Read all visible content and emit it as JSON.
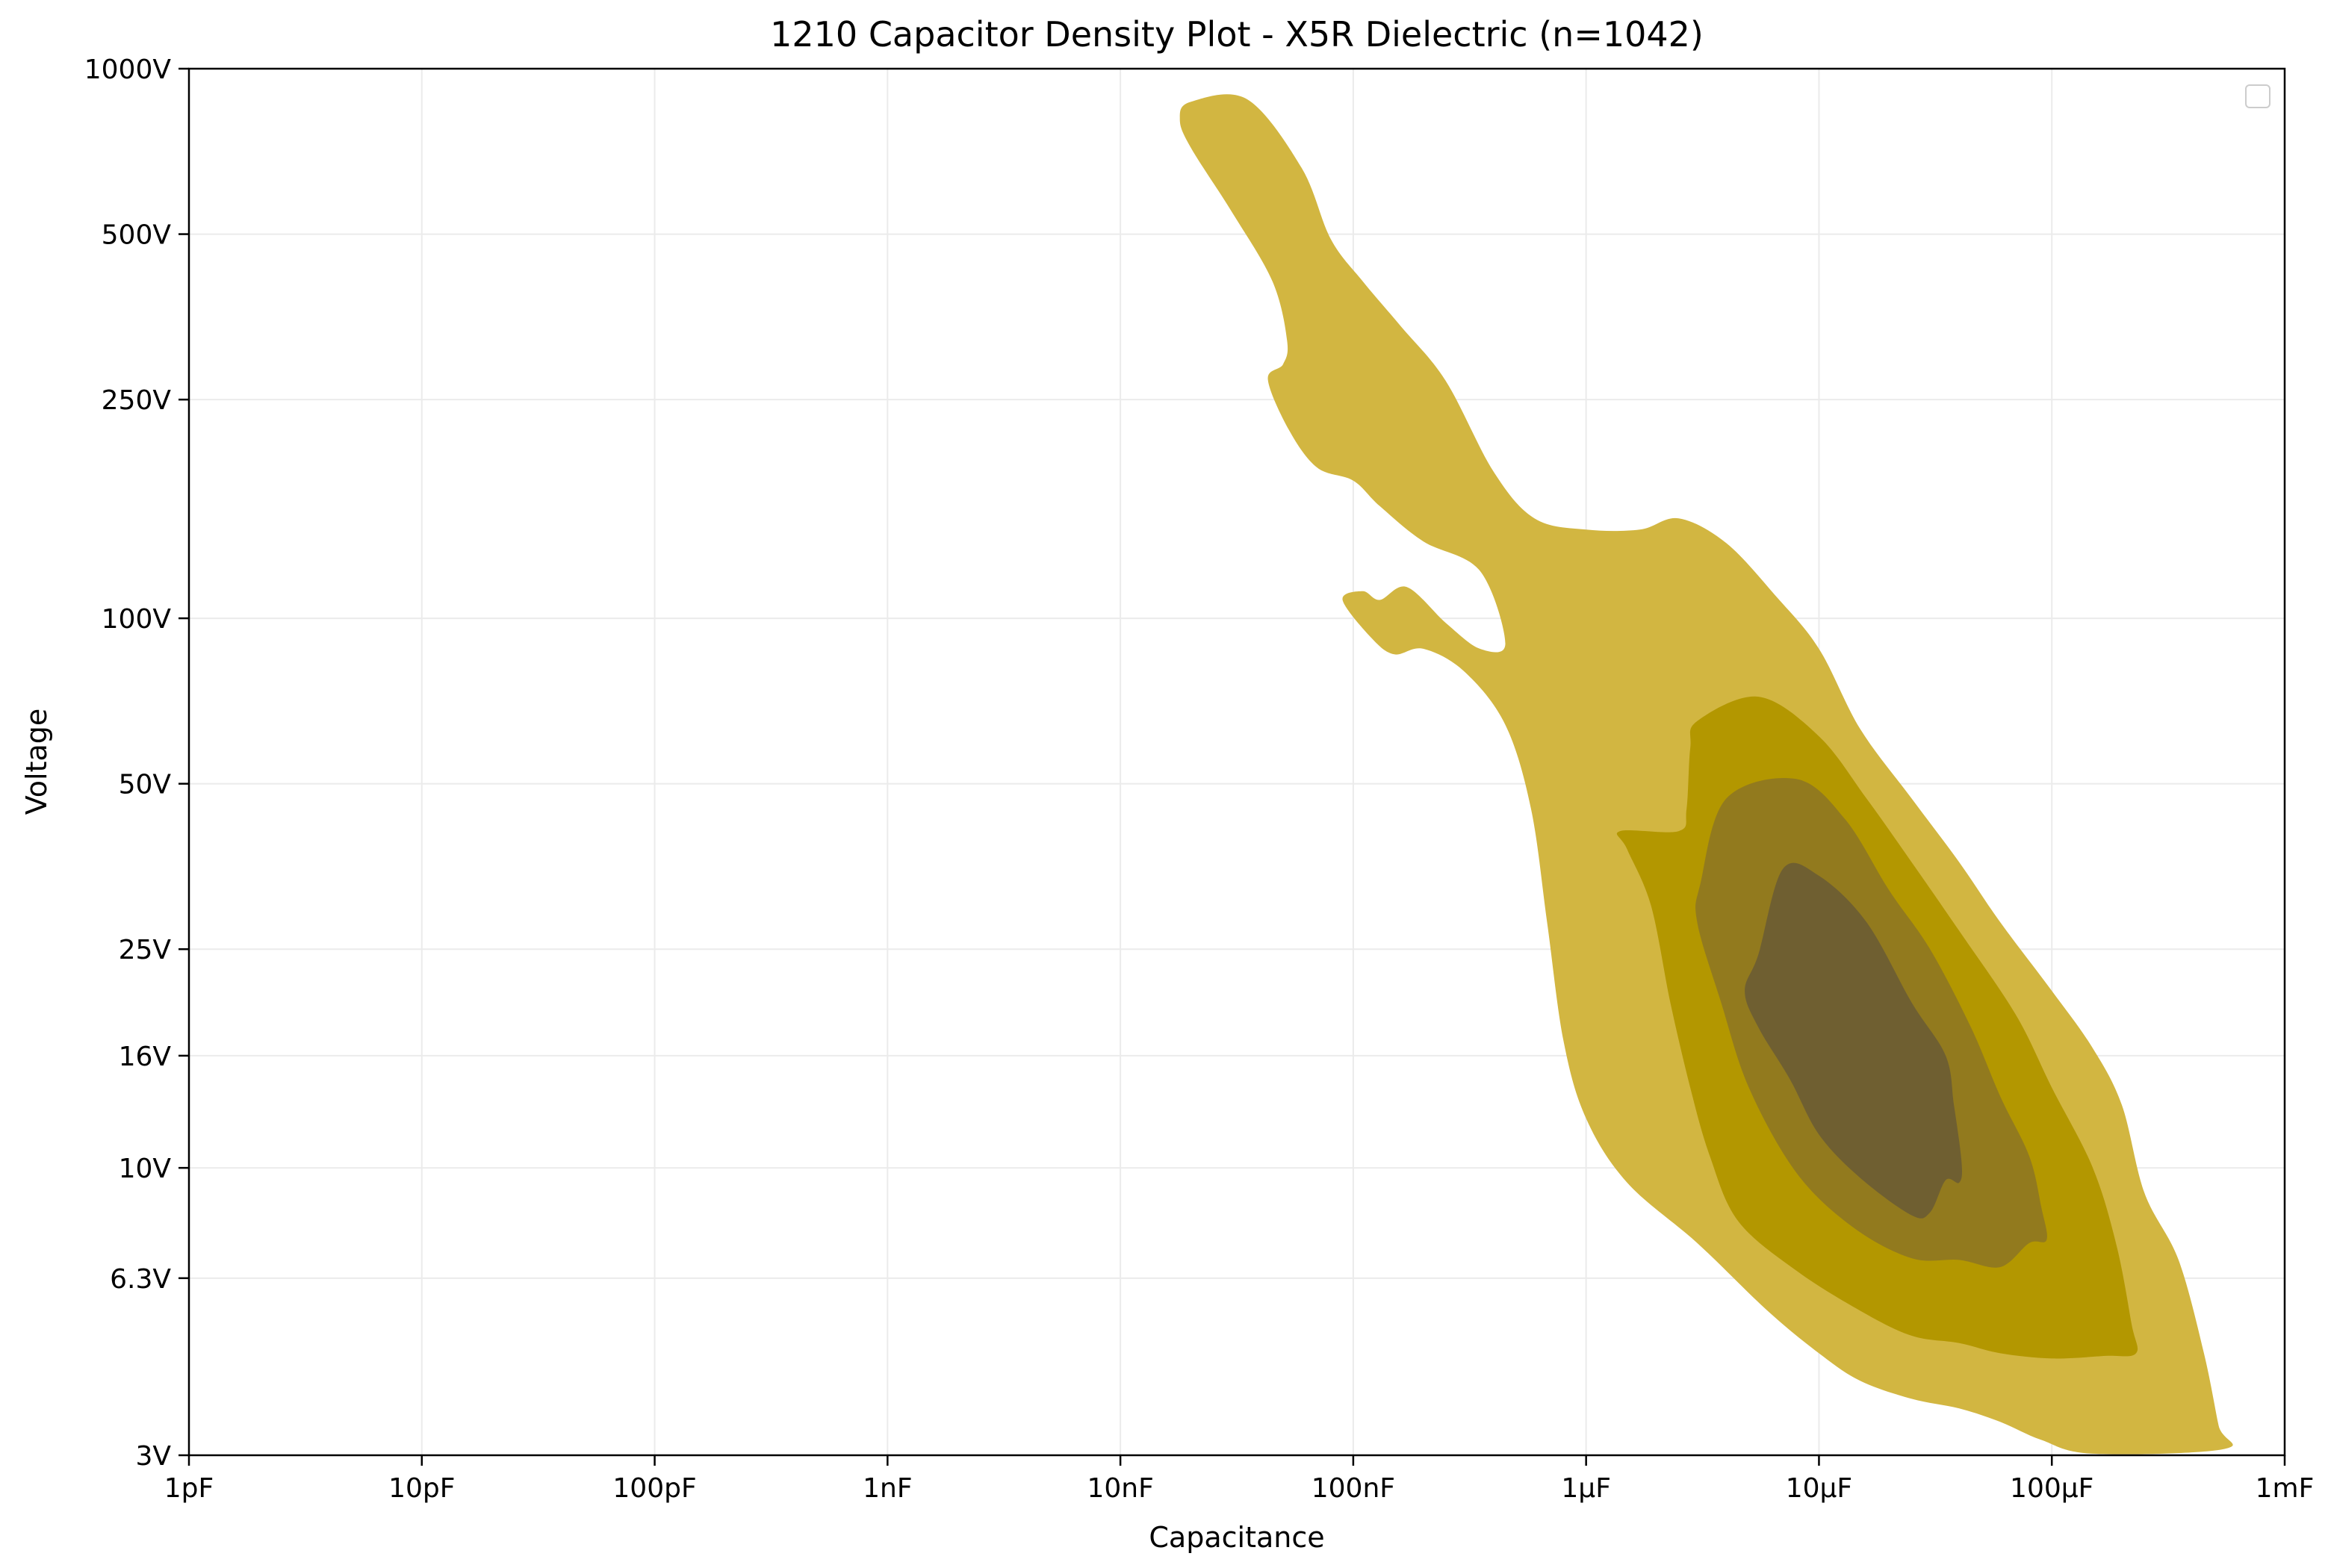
{
  "chart_data": {
    "type": "contour",
    "title": "1210 Capacitor Density Plot - X5R Dielectric (n=1042)",
    "xlabel": "Capacitance",
    "ylabel": "Voltage",
    "x_scale": "log",
    "y_scale": "log",
    "x_range_farads": [
      1e-12,
      0.001
    ],
    "y_range_volts": [
      3,
      1000
    ],
    "x_ticks": [
      {
        "value": 1e-12,
        "label": "1pF"
      },
      {
        "value": 1e-11,
        "label": "10pF"
      },
      {
        "value": 1e-10,
        "label": "100pF"
      },
      {
        "value": 1e-09,
        "label": "1nF"
      },
      {
        "value": 1e-08,
        "label": "10nF"
      },
      {
        "value": 1e-07,
        "label": "100nF"
      },
      {
        "value": 1e-06,
        "label": "1μF"
      },
      {
        "value": 1e-05,
        "label": "10μF"
      },
      {
        "value": 0.0001,
        "label": "100μF"
      },
      {
        "value": 0.001,
        "label": "1mF"
      }
    ],
    "y_ticks": [
      {
        "value": 3,
        "label": "3V"
      },
      {
        "value": 6.3,
        "label": "6.3V"
      },
      {
        "value": 10,
        "label": "10V"
      },
      {
        "value": 16,
        "label": "16V"
      },
      {
        "value": 25,
        "label": "25V"
      },
      {
        "value": 50,
        "label": "50V"
      },
      {
        "value": 100,
        "label": "100V"
      },
      {
        "value": 250,
        "label": "250V"
      },
      {
        "value": 500,
        "label": "500V"
      },
      {
        "value": 1000,
        "label": "1000V"
      }
    ],
    "grid": true,
    "legend": {
      "position": "top-right",
      "entries": []
    },
    "levels": [
      {
        "color": "#d2b641",
        "regions": [
          {
            "name": "density-level-1-main-region",
            "points": [
              [
                2e-08,
                870
              ],
              [
                3.5e-08,
                880
              ],
              [
                6e-08,
                660
              ],
              [
                8e-08,
                490
              ],
              [
                1.1e-07,
                410
              ],
              [
                1.6e-07,
                340
              ],
              [
                2.5e-07,
                270
              ],
              [
                4e-07,
                185
              ],
              [
                6e-07,
                152
              ],
              [
                1e-06,
                145
              ],
              [
                1.7e-06,
                145
              ],
              [
                2.5e-06,
                152
              ],
              [
                4e-06,
                137
              ],
              [
                6.5e-06,
                110
              ],
              [
                1e-05,
                88
              ],
              [
                1.5e-05,
                63
              ],
              [
                2.5e-05,
                47
              ],
              [
                4e-05,
                36
              ],
              [
                6e-05,
                28
              ],
              [
                0.0001,
                21
              ],
              [
                0.00015,
                16.5
              ],
              [
                0.0002,
                13
              ],
              [
                0.00025,
                9
              ],
              [
                0.00035,
                6.8
              ],
              [
                0.00045,
                4.6
              ],
              [
                0.00052,
                3.4
              ],
              [
                0.00055,
                3.08
              ],
              [
                0.00015,
                3.02
              ],
              [
                9e-05,
                3.2
              ],
              [
                6e-05,
                3.45
              ],
              [
                4e-05,
                3.65
              ],
              [
                2.5e-05,
                3.8
              ],
              [
                1.5e-05,
                4.1
              ],
              [
                1e-05,
                4.6
              ],
              [
                6e-06,
                5.5
              ],
              [
                3e-06,
                7.3
              ],
              [
                1.5e-06,
                9.4
              ],
              [
                1e-06,
                12.3
              ],
              [
                8e-07,
                17
              ],
              [
                6.8e-07,
                28
              ],
              [
                5.8e-07,
                45
              ],
              [
                4.5e-07,
                64
              ],
              [
                3e-07,
                80
              ],
              [
                2e-07,
                88
              ],
              [
                1.5e-07,
                86
              ],
              [
                1.2e-07,
                92
              ],
              [
                9e-08,
                108
              ],
              [
                1.1e-07,
                112
              ],
              [
                1.3e-07,
                108
              ],
              [
                1.7e-07,
                114
              ],
              [
                2.5e-07,
                98
              ],
              [
                3.5e-07,
                88
              ],
              [
                4.5e-07,
                90
              ],
              [
                3.5e-07,
                122
              ],
              [
                2e-07,
                138
              ],
              [
                1.3e-07,
                160
              ],
              [
                1e-07,
                178
              ],
              [
                7e-08,
                188
              ],
              [
                5.3e-08,
                220
              ],
              [
                4.3e-08,
                272
              ],
              [
                5e-08,
                290
              ],
              [
                5.2e-08,
                320
              ],
              [
                4.5e-08,
                410
              ],
              [
                3e-08,
                550
              ],
              [
                2e-08,
                720
              ],
              [
                1.8e-08,
                810
              ]
            ]
          }
        ]
      },
      {
        "color": "#b39700",
        "regions": [
          {
            "name": "density-level-2-region",
            "points": [
              [
                3e-06,
                65
              ],
              [
                5.5e-06,
                72
              ],
              [
                1e-05,
                61
              ],
              [
                1.6e-05,
                47
              ],
              [
                2.5e-05,
                36
              ],
              [
                4e-05,
                27
              ],
              [
                7e-05,
                19
              ],
              [
                0.0001,
                14
              ],
              [
                0.00015,
                10
              ],
              [
                0.00019,
                7.2
              ],
              [
                0.00022,
                5.2
              ],
              [
                0.00023,
                4.6
              ],
              [
                0.00017,
                4.55
              ],
              [
                0.0001,
                4.5
              ],
              [
                6e-05,
                4.6
              ],
              [
                4e-05,
                4.8
              ],
              [
                2.5e-05,
                4.95
              ],
              [
                1.5e-05,
                5.5
              ],
              [
                8e-06,
                6.5
              ],
              [
                4.5e-06,
                8
              ],
              [
                3.4e-06,
                10.5
              ],
              [
                2.8e-06,
                14
              ],
              [
                2.3e-06,
                20
              ],
              [
                1.9e-06,
                30
              ],
              [
                1.5e-06,
                38
              ],
              [
                1.4e-06,
                41
              ],
              [
                2.5e-06,
                41
              ],
              [
                2.7e-06,
                45
              ],
              [
                2.8e-06,
                58
              ]
            ]
          }
        ]
      },
      {
        "color": "#927a1e",
        "regions": [
          {
            "name": "density-level-3-region",
            "points": [
              [
                4e-06,
                47
              ],
              [
                8e-06,
                51
              ],
              [
                1.3e-05,
                43
              ],
              [
                2e-05,
                32
              ],
              [
                3e-05,
                25
              ],
              [
                4.5e-05,
                18
              ],
              [
                6e-05,
                13.5
              ],
              [
                8e-05,
                10.5
              ],
              [
                9e-05,
                8.5
              ],
              [
                9.5e-05,
                7.4
              ],
              [
                8e-05,
                7.3
              ],
              [
                6e-05,
                6.6
              ],
              [
                4e-05,
                6.8
              ],
              [
                2.5e-05,
                6.85
              ],
              [
                1.4e-05,
                7.8
              ],
              [
                8e-06,
                9.8
              ],
              [
                5e-06,
                14
              ],
              [
                3.8e-06,
                20
              ],
              [
                3e-06,
                28
              ],
              [
                3.1e-06,
                33
              ]
            ]
          }
        ]
      },
      {
        "color": "#6f5f31",
        "regions": [
          {
            "name": "density-level-4-region",
            "points": [
              [
                7e-06,
                35
              ],
              [
                1e-05,
                34
              ],
              [
                1.6e-05,
                28
              ],
              [
                2.5e-05,
                20
              ],
              [
                3.5e-05,
                16
              ],
              [
                3.8e-05,
                13
              ],
              [
                4.1e-05,
                10.2
              ],
              [
                4e-05,
                9.4
              ],
              [
                3.5e-05,
                9.5
              ],
              [
                3e-05,
                8.3
              ],
              [
                2.5e-05,
                8.2
              ],
              [
                1.5e-05,
                9.6
              ],
              [
                1e-05,
                11.5
              ],
              [
                7.5e-06,
                14.5
              ],
              [
                5.5e-06,
                18
              ],
              [
                4.8e-06,
                21
              ],
              [
                5.5e-06,
                24.5
              ]
            ]
          }
        ]
      }
    ]
  }
}
